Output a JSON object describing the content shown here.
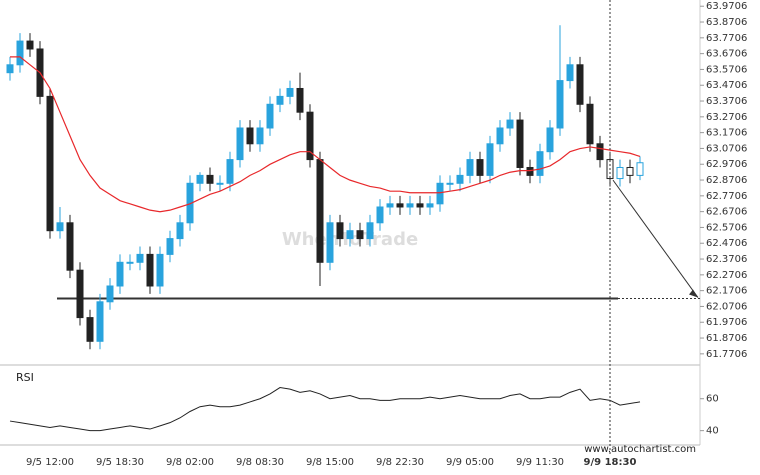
{
  "chart_data": {
    "type": "candlestick",
    "categories": [
      null,
      null,
      null,
      null,
      "9/5 12:00",
      null,
      null,
      null,
      null,
      null,
      null,
      "9/5 18:30",
      null,
      null,
      null,
      null,
      null,
      null,
      "9/8 02:00",
      null,
      null,
      null,
      null,
      null,
      null,
      "9/8 08:30",
      null,
      null,
      null,
      null,
      null,
      null,
      "9/8 15:00",
      null,
      null,
      null,
      null,
      null,
      null,
      "9/8 22:30",
      null,
      null,
      null,
      null,
      null,
      null,
      "9/9 05:00",
      null,
      null,
      null,
      null,
      null,
      null,
      "9/9 11:30",
      null,
      null,
      null,
      null,
      null,
      null,
      "9/9 18:30",
      null,
      null,
      null
    ],
    "open": [
      63.55,
      63.6,
      63.75,
      63.7,
      63.4,
      62.55,
      62.6,
      62.3,
      62.0,
      61.85,
      62.1,
      62.2,
      62.35,
      62.35,
      62.4,
      62.2,
      62.4,
      62.5,
      62.6,
      62.85,
      62.9,
      62.85,
      62.85,
      63.0,
      63.2,
      63.1,
      63.2,
      63.35,
      63.4,
      63.45,
      63.3,
      63.0,
      62.35,
      62.6,
      62.5,
      62.55,
      62.5,
      62.6,
      62.7,
      62.72,
      62.7,
      62.72,
      62.7,
      62.72,
      62.85,
      62.85,
      62.9,
      63.0,
      62.9,
      63.1,
      63.2,
      63.25,
      62.95,
      62.9,
      63.05,
      63.2,
      63.5,
      63.6,
      63.35,
      63.1,
      63.0,
      62.88,
      62.95,
      62.9
    ],
    "high": [
      63.65,
      63.8,
      63.8,
      63.75,
      63.45,
      62.7,
      62.65,
      62.35,
      62.05,
      62.15,
      62.25,
      62.4,
      62.4,
      62.45,
      62.45,
      62.45,
      62.55,
      62.65,
      62.9,
      62.92,
      62.95,
      62.9,
      63.05,
      63.25,
      63.25,
      63.25,
      63.4,
      63.45,
      63.5,
      63.55,
      63.35,
      63.05,
      62.65,
      62.65,
      62.6,
      62.6,
      62.65,
      62.75,
      62.77,
      62.77,
      62.77,
      62.77,
      62.77,
      62.9,
      62.9,
      62.95,
      63.05,
      63.05,
      63.15,
      63.25,
      63.3,
      63.3,
      63.0,
      63.1,
      63.25,
      63.85,
      63.65,
      63.65,
      63.4,
      63.15,
      63.05,
      63.0,
      63.0,
      63.02
    ],
    "low": [
      63.5,
      63.55,
      63.65,
      63.35,
      62.5,
      62.5,
      62.25,
      61.95,
      61.8,
      61.8,
      62.05,
      62.15,
      62.3,
      62.3,
      62.15,
      62.15,
      62.35,
      62.45,
      62.55,
      62.8,
      62.8,
      62.8,
      62.8,
      62.95,
      63.05,
      63.05,
      63.15,
      63.3,
      63.35,
      63.25,
      62.95,
      62.2,
      62.3,
      62.45,
      62.45,
      62.45,
      62.45,
      62.55,
      62.65,
      62.65,
      62.65,
      62.65,
      62.65,
      62.67,
      62.8,
      62.8,
      62.85,
      62.85,
      62.85,
      63.05,
      63.15,
      62.9,
      62.85,
      62.85,
      63.0,
      63.15,
      63.45,
      63.3,
      63.05,
      62.95,
      62.83,
      62.83,
      62.85,
      62.87
    ],
    "close": [
      63.6,
      63.75,
      63.7,
      63.4,
      62.55,
      62.6,
      62.3,
      62.0,
      61.85,
      62.1,
      62.2,
      62.35,
      62.35,
      62.4,
      62.2,
      62.4,
      62.5,
      62.6,
      62.85,
      62.9,
      62.85,
      62.85,
      63.0,
      63.2,
      63.1,
      63.2,
      63.35,
      63.4,
      63.45,
      63.3,
      63.0,
      62.35,
      62.6,
      62.5,
      62.55,
      62.5,
      62.6,
      62.7,
      62.72,
      62.7,
      62.72,
      62.7,
      62.72,
      62.85,
      62.85,
      62.9,
      63.0,
      62.9,
      63.1,
      63.2,
      63.25,
      62.95,
      62.9,
      63.05,
      63.2,
      63.5,
      63.6,
      63.35,
      63.1,
      63.0,
      62.88,
      62.95,
      62.9,
      62.98
    ],
    "up_color": "#29a3dd",
    "down_color": "#222222",
    "moving_average": {
      "color": "#e8282b",
      "values": [
        63.65,
        63.65,
        63.6,
        63.55,
        63.45,
        63.3,
        63.15,
        63.0,
        62.9,
        62.82,
        62.78,
        62.74,
        62.72,
        62.7,
        62.68,
        62.67,
        62.68,
        62.7,
        62.72,
        62.75,
        62.78,
        62.8,
        62.83,
        62.86,
        62.9,
        62.93,
        62.97,
        63.0,
        63.03,
        63.05,
        63.05,
        63.0,
        62.95,
        62.9,
        62.87,
        62.85,
        62.83,
        62.82,
        62.8,
        62.8,
        62.79,
        62.79,
        62.79,
        62.79,
        62.8,
        62.81,
        62.83,
        62.85,
        62.87,
        62.9,
        62.92,
        62.93,
        62.93,
        62.94,
        62.96,
        63.0,
        63.05,
        63.07,
        63.08,
        63.07,
        63.06,
        63.05,
        63.04,
        63.02
      ]
    },
    "ylim": [
      61.7,
      64.01
    ],
    "yticks": [
      61.7706,
      61.8706,
      61.9706,
      62.0706,
      62.1706,
      62.2706,
      62.3706,
      62.4706,
      62.5706,
      62.6706,
      62.7706,
      62.8706,
      62.9706,
      63.0706,
      63.1706,
      63.2706,
      63.3706,
      63.4706,
      63.5706,
      63.6706,
      63.7706,
      63.8706,
      63.9706
    ],
    "support_level": 62.1206,
    "forecast_start": 62.87,
    "rsi": {
      "label": "RSI",
      "color": "#222222",
      "values": [
        46,
        45,
        44,
        43,
        42,
        43,
        42,
        41,
        40,
        40,
        41,
        42,
        43,
        42,
        41,
        43,
        45,
        48,
        52,
        55,
        56,
        55,
        55,
        56,
        58,
        60,
        63,
        67,
        66,
        64,
        65,
        63,
        60,
        61,
        62,
        60,
        60,
        59,
        59,
        60,
        60,
        60,
        61,
        60,
        61,
        62,
        61,
        60,
        60,
        60,
        62,
        63,
        60,
        60,
        61,
        61,
        64,
        66,
        59,
        60,
        59,
        56,
        57,
        58
      ],
      "ylim": [
        31,
        78
      ],
      "yticks": [
        40,
        60
      ]
    },
    "watermark": "WhenToTrade",
    "source": "www.autochartist.com"
  }
}
